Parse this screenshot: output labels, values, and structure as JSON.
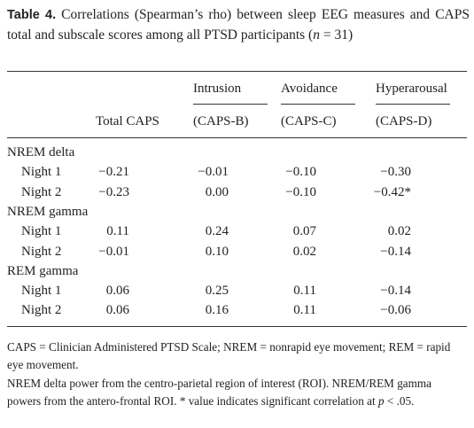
{
  "caption": {
    "label": "Table 4.",
    "text": "Correlations (Spearman’s rho) between sleep EEG measures and CAPS total and subscale scores among all PTSD participants (",
    "n": "n",
    "end": " = 31)"
  },
  "table": {
    "header": {
      "total": "Total CAPS",
      "subscales": [
        {
          "name": "Intrusion",
          "code": "(CAPS-B)"
        },
        {
          "name": "Avoidance",
          "code": "(CAPS-C)"
        },
        {
          "name": "Hyperarousal",
          "code": "(CAPS-D)"
        }
      ]
    },
    "groups": [
      {
        "label": "NREM delta",
        "rows": [
          {
            "label": "Night 1",
            "values": [
              "−0.21",
              "−0.01",
              "−0.10",
              "−0.30"
            ]
          },
          {
            "label": "Night 2",
            "values": [
              "−0.23",
              "0.00",
              "−0.10",
              "−0.42*"
            ]
          }
        ]
      },
      {
        "label": "NREM gamma",
        "rows": [
          {
            "label": "Night 1",
            "values": [
              "0.11",
              "0.24",
              "0.07",
              "0.02"
            ]
          },
          {
            "label": "Night 2",
            "values": [
              "−0.01",
              "0.10",
              "0.02",
              "−0.14"
            ]
          }
        ]
      },
      {
        "label": "REM gamma",
        "rows": [
          {
            "label": "Night 1",
            "values": [
              "0.06",
              "0.25",
              "0.11",
              "−0.14"
            ]
          },
          {
            "label": "Night 2",
            "values": [
              "0.06",
              "0.16",
              "0.11",
              "−0.06"
            ]
          }
        ]
      }
    ]
  },
  "notes": {
    "abbreviations": "CAPS = Clinician Administered PTSD Scale; NREM = nonrapid eye movement; REM = rapid eye movement.",
    "method": {
      "text": "NREM delta power from the centro-parietal region of interest (ROI). NREM/REM gamma powers from the antero-frontal ROI. * value indicates significant correlation at ",
      "p": "p",
      "end": " < .05."
    }
  }
}
